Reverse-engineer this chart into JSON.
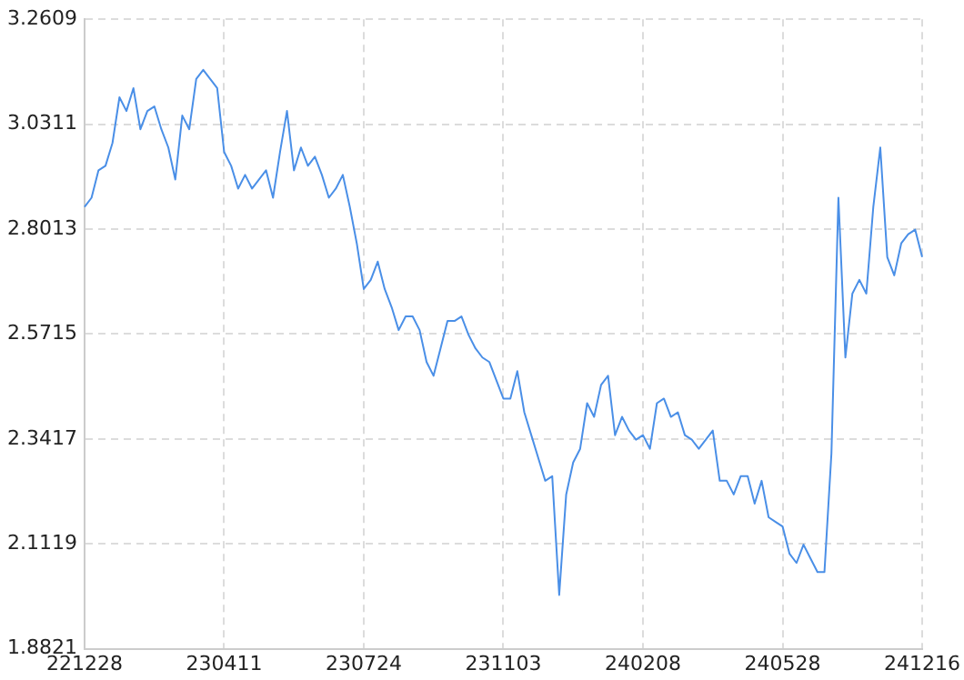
{
  "chart_data": {
    "type": "line",
    "color": "#4a8fe7",
    "grid": true,
    "categories": [
      "221228",
      null,
      null,
      null,
      null,
      null,
      null,
      null,
      null,
      null,
      null,
      null,
      null,
      null,
      null,
      null,
      null,
      null,
      null,
      null,
      "230411",
      null,
      null,
      null,
      null,
      null,
      null,
      null,
      null,
      null,
      null,
      null,
      null,
      null,
      null,
      null,
      null,
      null,
      null,
      null,
      "230724",
      null,
      null,
      null,
      null,
      null,
      null,
      null,
      null,
      null,
      null,
      null,
      null,
      null,
      null,
      null,
      null,
      null,
      null,
      null,
      "231103",
      null,
      null,
      null,
      null,
      null,
      null,
      null,
      null,
      null,
      null,
      null,
      null,
      null,
      null,
      null,
      null,
      null,
      null,
      null,
      "240208",
      null,
      null,
      null,
      null,
      null,
      null,
      null,
      null,
      null,
      null,
      null,
      null,
      null,
      null,
      null,
      null,
      null,
      null,
      null,
      "240528",
      null,
      null,
      null,
      null,
      null,
      null,
      null,
      null,
      null,
      null,
      null,
      null,
      null,
      null,
      null,
      null,
      null,
      null,
      null,
      "241216"
    ],
    "values": [
      2.85,
      2.87,
      2.93,
      2.94,
      2.99,
      3.09,
      3.06,
      3.11,
      3.02,
      3.06,
      3.07,
      3.02,
      2.98,
      2.91,
      3.05,
      3.02,
      3.13,
      3.15,
      3.13,
      3.11,
      2.97,
      2.94,
      2.89,
      2.92,
      2.89,
      2.91,
      2.93,
      2.87,
      2.97,
      3.06,
      2.93,
      2.98,
      2.94,
      2.96,
      2.92,
      2.87,
      2.89,
      2.92,
      2.85,
      2.77,
      2.67,
      2.69,
      2.73,
      2.67,
      2.63,
      2.58,
      2.61,
      2.61,
      2.58,
      2.51,
      2.48,
      2.54,
      2.6,
      2.6,
      2.61,
      2.57,
      2.54,
      2.52,
      2.51,
      2.47,
      2.43,
      2.43,
      2.49,
      2.4,
      2.35,
      2.3,
      2.25,
      2.26,
      2.0,
      2.22,
      2.29,
      2.32,
      2.42,
      2.39,
      2.46,
      2.48,
      2.35,
      2.39,
      2.36,
      2.34,
      2.35,
      2.32,
      2.42,
      2.43,
      2.39,
      2.4,
      2.35,
      2.34,
      2.32,
      2.34,
      2.36,
      2.25,
      2.25,
      2.22,
      2.26,
      2.26,
      2.2,
      2.25,
      2.17,
      2.16,
      2.15,
      2.09,
      2.07,
      2.11,
      2.08,
      2.05,
      2.05,
      2.31,
      2.87,
      2.52,
      2.66,
      2.69,
      2.66,
      2.85,
      2.98,
      2.74,
      2.7,
      2.77,
      2.79,
      2.8,
      2.74
    ],
    "ylim": [
      1.8821,
      3.2609
    ],
    "yticks": [
      1.8821,
      2.1119,
      2.3417,
      2.5715,
      2.8013,
      3.0311,
      3.2609
    ],
    "legend": false
  }
}
